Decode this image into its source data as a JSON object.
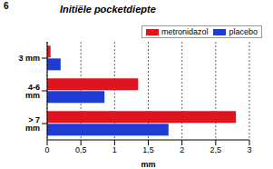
{
  "slide_number": "6",
  "chart_data": {
    "type": "bar",
    "title": "Initiële pocketdiepte",
    "orientation": "horizontal",
    "categories": [
      "3 mm",
      "4-6 mm",
      "> 7 mm"
    ],
    "series": [
      {
        "name": "metronidazol",
        "color": "#e0141e",
        "values": [
          0.05,
          1.35,
          2.8
        ]
      },
      {
        "name": "placebo",
        "color": "#1e3cd2",
        "values": [
          0.2,
          0.85,
          1.8
        ]
      }
    ],
    "x_label": "mm",
    "xlim": [
      0,
      3
    ],
    "xticks": [
      0,
      {
        "value": 0.5,
        "label": "0,5"
      },
      1,
      {
        "value": 1.5,
        "label": "1,5"
      },
      2,
      {
        "value": 2.5,
        "label": "2,5"
      },
      3
    ],
    "grid": true,
    "legend": "top-right"
  }
}
